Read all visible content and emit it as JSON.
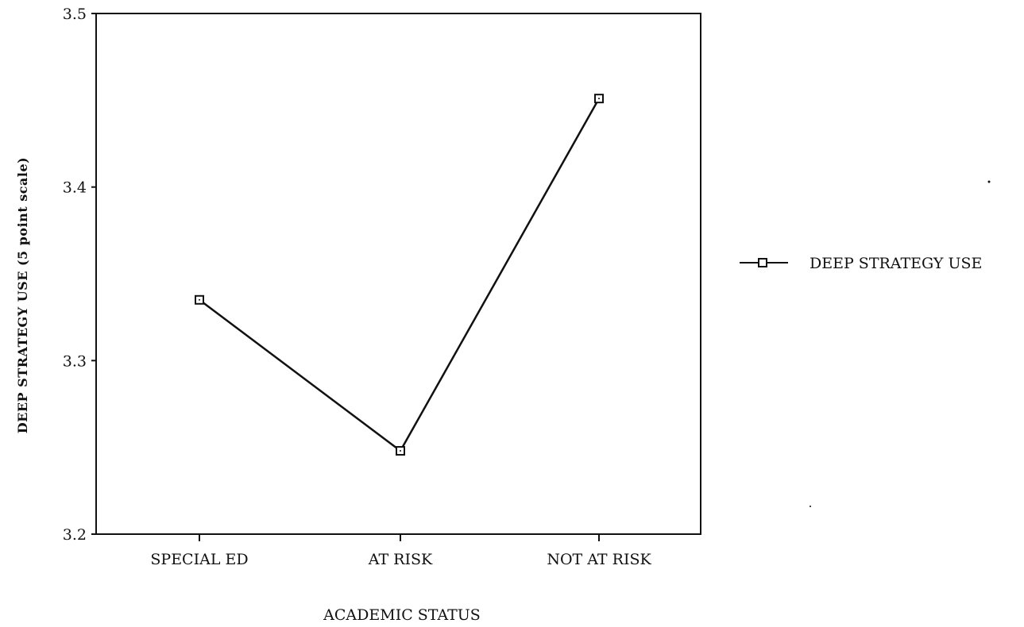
{
  "chart_data": {
    "type": "line",
    "title": "",
    "xlabel": "ACADEMIC STATUS",
    "ylabel": "DEEP STRATEGY USE (5 point scale)",
    "categories": [
      "SPECIAL ED",
      "AT RISK",
      "NOT AT RISK"
    ],
    "series": [
      {
        "name": "DEEP STRATEGY USE",
        "values": [
          3.335,
          3.248,
          3.451
        ],
        "marker": "square",
        "color": "#111111"
      }
    ],
    "ylim": [
      3.2,
      3.5
    ],
    "yticks": [
      "3.2",
      "3.3",
      "3.4",
      "3.5"
    ],
    "grid": false,
    "legend_position": "right"
  }
}
